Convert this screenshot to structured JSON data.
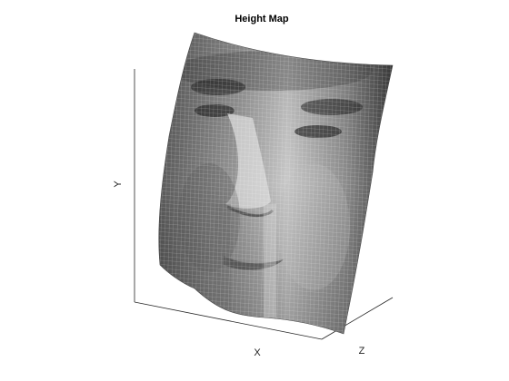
{
  "chart_data": {
    "type": "surface",
    "title": "Height Map",
    "xlabel": "X",
    "ylabel": "Y",
    "zlabel": "Z",
    "colormap": "gray",
    "surface": "textured height map of a face (grayscale photo draped on surface)",
    "box": "off",
    "ticks": "none"
  }
}
